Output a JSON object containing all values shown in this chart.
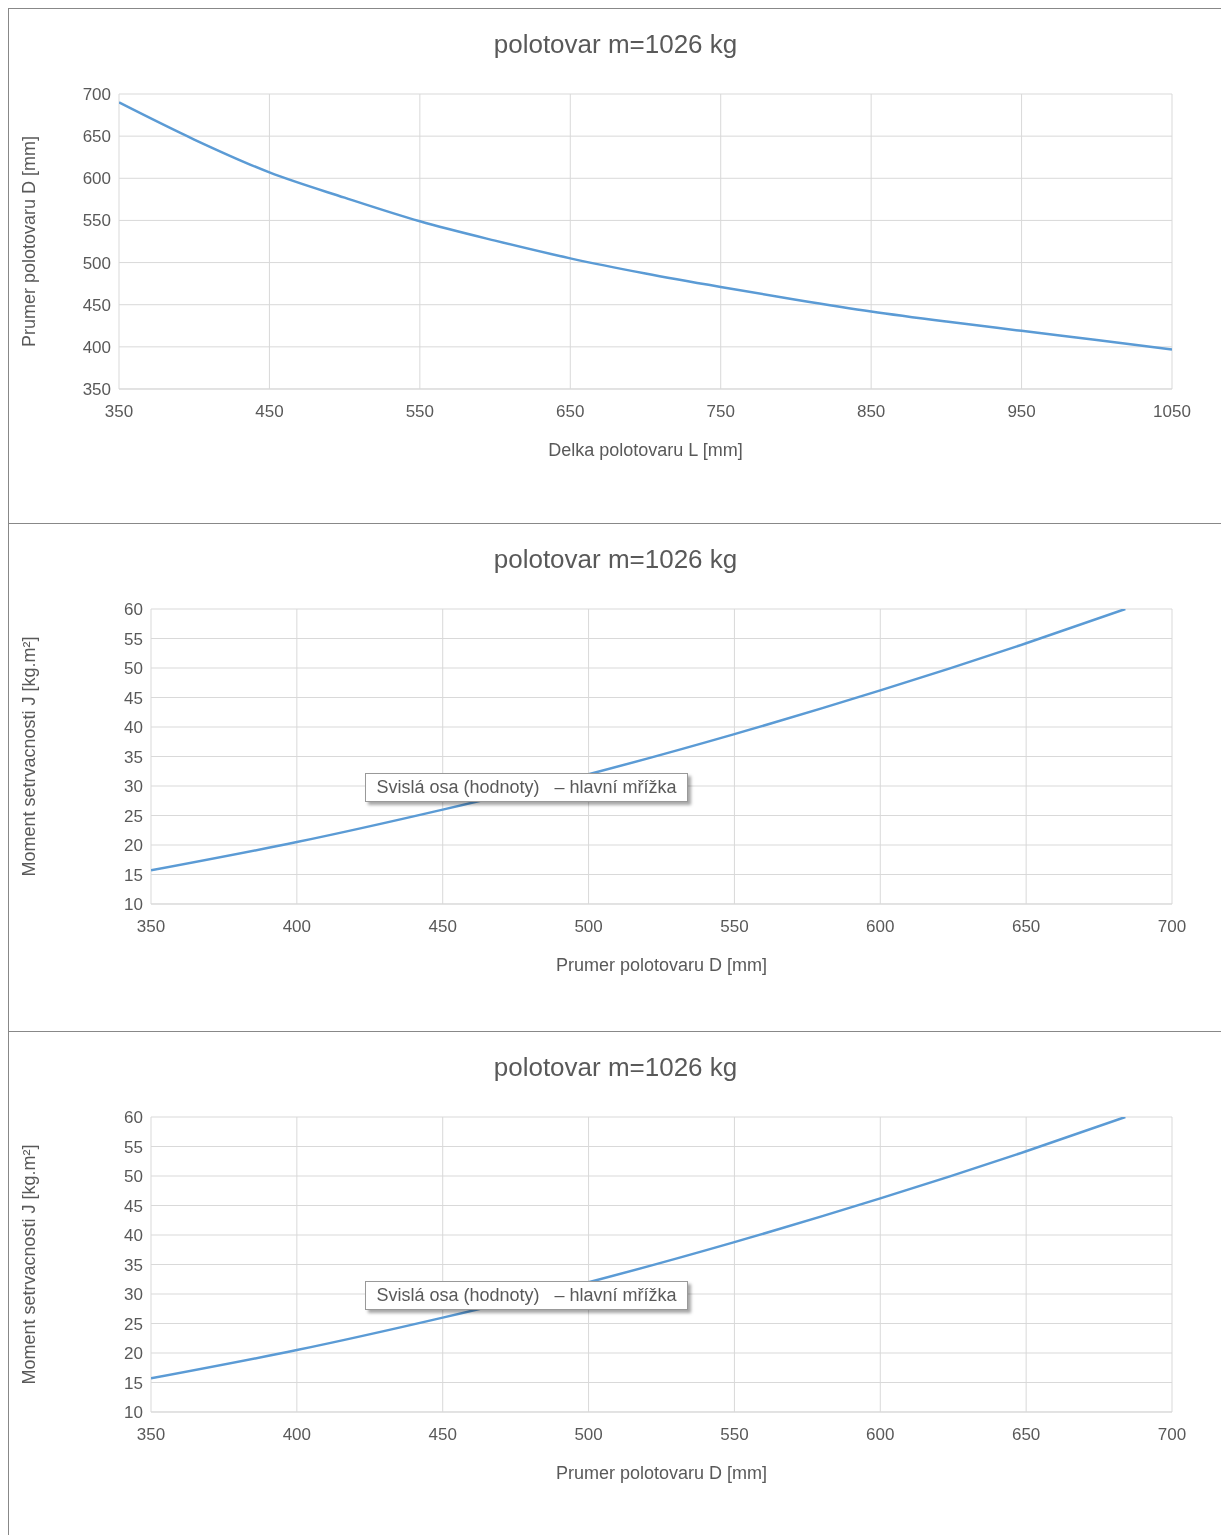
{
  "chart_data": [
    {
      "type": "line",
      "title": "polotovar m=1026 kg",
      "xlabel": "Delka polotovaru L [mm]",
      "ylabel": "Prumer polotovaru D [mm]",
      "x": [
        350,
        400,
        450,
        500,
        550,
        600,
        650,
        700,
        750,
        800,
        850,
        900,
        950,
        1000,
        1050
      ],
      "series": [
        {
          "color": "#5b9bd5",
          "values": [
            690,
            646,
            607,
            577,
            549,
            526,
            505,
            487,
            471,
            456,
            442,
            430,
            419,
            408,
            397
          ]
        }
      ],
      "xlim": [
        350,
        1050
      ],
      "xticks": [
        350,
        450,
        550,
        650,
        750,
        850,
        950,
        1050
      ],
      "ylim": [
        350,
        700
      ],
      "yticks": [
        350,
        400,
        450,
        500,
        550,
        600,
        650,
        700
      ],
      "grid": true,
      "marker": "none",
      "line_style": "solid"
    },
    {
      "type": "line",
      "title": "polotovar m=1026 kg",
      "xlabel": "Prumer polotovaru D [mm]",
      "ylabel": "Moment setrvacnosti J [kg.m²]",
      "x": [
        350,
        400,
        450,
        500,
        550,
        600,
        650,
        684
      ],
      "series": [
        {
          "color": "#5b9bd5",
          "values": [
            15.7,
            20.5,
            26,
            32,
            38.8,
            46.2,
            54.2,
            60
          ]
        }
      ],
      "xlim": [
        350,
        700
      ],
      "xticks": [
        350,
        400,
        450,
        500,
        550,
        600,
        650,
        700
      ],
      "ylim": [
        10,
        60
      ],
      "yticks": [
        10,
        15,
        20,
        25,
        30,
        35,
        40,
        45,
        50,
        55,
        60
      ],
      "grid": true,
      "marker": "none",
      "line_style": "solid",
      "annotations": [
        "Svislá osa (hodnoty)   – hlavní mřížka"
      ]
    },
    {
      "type": "line",
      "title": "polotovar m=1026 kg",
      "xlabel": "Prumer polotovaru D [mm]",
      "ylabel": "Moment setrvacnosti J [kg.m²]",
      "x": [
        350,
        400,
        450,
        500,
        550,
        600,
        650,
        684
      ],
      "series": [
        {
          "color": "#5b9bd5",
          "values": [
            15.7,
            20.5,
            26,
            32,
            38.8,
            46.2,
            54.2,
            60
          ]
        }
      ],
      "xlim": [
        350,
        700
      ],
      "xticks": [
        350,
        400,
        450,
        500,
        550,
        600,
        650,
        700
      ],
      "ylim": [
        10,
        60
      ],
      "yticks": [
        10,
        15,
        20,
        25,
        30,
        35,
        40,
        45,
        50,
        55,
        60
      ],
      "grid": true,
      "marker": "none",
      "line_style": "solid",
      "annotations": [
        "Svislá osa (hodnoty)   – hlavní mřížka"
      ]
    }
  ]
}
